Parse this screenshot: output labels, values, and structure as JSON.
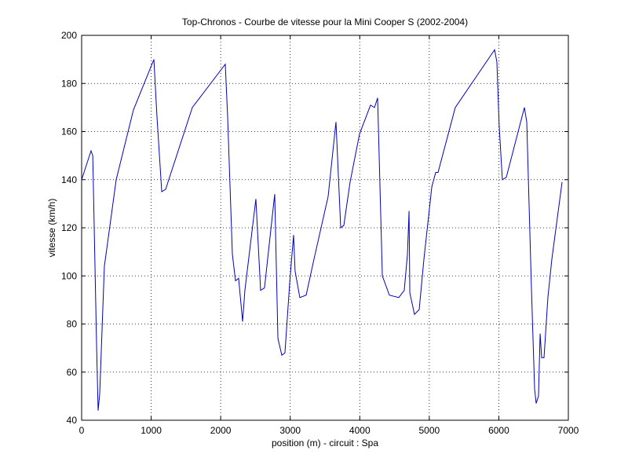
{
  "chart_data": {
    "type": "line",
    "title": "Top-Chronos - Courbe de vitesse pour la Mini Cooper S (2002-2004)",
    "xlabel": "position (m) - circuit : Spa",
    "ylabel": "vitesse (km/h)",
    "color": "#0000c0",
    "grid": true,
    "xlim": [
      0,
      7000
    ],
    "ylim": [
      40,
      200
    ],
    "xticks": [
      0,
      1000,
      2000,
      3000,
      4000,
      5000,
      6000,
      7000
    ],
    "yticks": [
      40,
      60,
      80,
      100,
      120,
      140,
      160,
      180,
      200
    ],
    "x": [
      0,
      135,
      160,
      215,
      237,
      260,
      327,
      497,
      745,
      1039,
      1084,
      1152,
      1208,
      1253,
      1592,
      2066,
      2100,
      2168,
      2213,
      2258,
      2315,
      2348,
      2506,
      2574,
      2630,
      2777,
      2823,
      2879,
      2924,
      2992,
      3048,
      3070,
      3138,
      3229,
      3342,
      3545,
      3658,
      3726,
      3771,
      3861,
      3997,
      4155,
      4212,
      4257,
      4325,
      4426,
      4561,
      4640,
      4686,
      4709,
      4720,
      4787,
      4855,
      4923,
      5036,
      5092,
      5126,
      5374,
      5939,
      5972,
      6006,
      6051,
      6108,
      6368,
      6402,
      6470,
      6515,
      6537,
      6571,
      6594,
      6616,
      6650,
      6706,
      6763,
      6910
    ],
    "values": [
      140,
      152,
      150,
      71,
      44,
      51,
      104,
      140,
      169,
      190,
      166,
      135,
      136,
      140,
      170,
      188,
      166,
      109,
      98,
      99,
      81,
      94,
      132,
      94,
      95,
      134,
      74,
      67,
      68,
      97,
      117,
      102,
      91,
      92,
      107,
      133,
      164,
      120,
      121,
      139,
      159,
      171,
      170,
      174,
      100,
      92,
      91,
      94,
      109,
      127,
      93,
      84,
      86,
      107,
      137,
      143,
      143,
      170,
      194,
      189,
      162,
      140,
      141,
      170,
      164,
      94,
      53,
      47,
      50,
      76,
      66,
      66,
      91,
      107,
      139
    ]
  }
}
